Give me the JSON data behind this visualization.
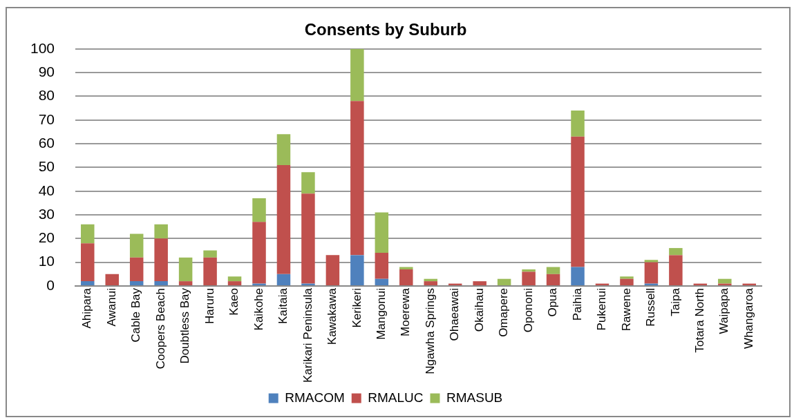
{
  "chart_data": {
    "type": "bar",
    "title": "Consents by Suburb",
    "stacked": true,
    "grid": "y",
    "legend": "bottom",
    "categories": [
      "Ahipara",
      "Awanui",
      "Cable Bay",
      "Coopers Beach",
      "Doubtless Bay",
      "Haruru",
      "Kaeo",
      "Kaikohe",
      "Kaitaia",
      "Karikari Peninsula",
      "Kawakawa",
      "Kerikeri",
      "Mangonui",
      "Moerewa",
      "Ngawha Springs",
      "Ohaeawai",
      "Okaihau",
      "Omapere",
      "Opononi",
      "Opua",
      "Paihia",
      "Pukenui",
      "Rawene",
      "Russell",
      "Taipa",
      "Totara North",
      "Waipapa",
      "Whangaroa"
    ],
    "series": [
      {
        "name": "RMACOM",
        "color": "#4f81bd",
        "values": [
          2,
          0,
          2,
          2,
          0,
          0,
          0,
          1,
          5,
          1,
          0,
          13,
          3,
          0,
          0,
          0,
          0,
          0,
          0,
          0,
          8,
          0,
          0,
          1,
          0,
          0,
          0,
          0
        ]
      },
      {
        "name": "RMALUC",
        "color": "#c0504d",
        "values": [
          16,
          5,
          10,
          18,
          2,
          12,
          2,
          26,
          46,
          38,
          13,
          65,
          11,
          7,
          2,
          1,
          2,
          0,
          6,
          5,
          55,
          1,
          3,
          9,
          13,
          1,
          1,
          1
        ]
      },
      {
        "name": "RMASUB",
        "color": "#9bbb59",
        "values": [
          8,
          0,
          10,
          6,
          10,
          3,
          2,
          10,
          13,
          9,
          0,
          22,
          17,
          1,
          1,
          0,
          0,
          3,
          1,
          3,
          11,
          0,
          1,
          1,
          3,
          0,
          2,
          0
        ]
      }
    ],
    "ylim": [
      0,
      100
    ],
    "yticks": [
      0,
      10,
      20,
      30,
      40,
      50,
      60,
      70,
      80,
      90,
      100
    ]
  }
}
